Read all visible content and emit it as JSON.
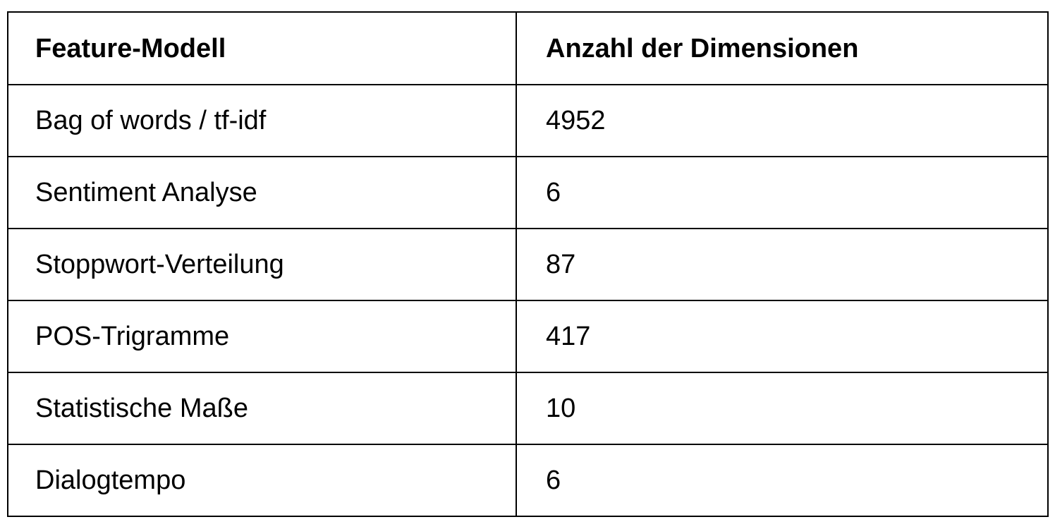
{
  "table": {
    "headers": [
      "Feature-Modell",
      "Anzahl der Dimensionen"
    ],
    "rows": [
      {
        "model": "Bag of words / tf-idf",
        "dimensions": "4952"
      },
      {
        "model": "Sentiment Analyse",
        "dimensions": "6"
      },
      {
        "model": "Stoppwort-Verteilung",
        "dimensions": "87"
      },
      {
        "model": "POS-Trigramme",
        "dimensions": "417"
      },
      {
        "model": "Statistische Maße",
        "dimensions": "10"
      },
      {
        "model": "Dialogtempo",
        "dimensions": "6"
      }
    ]
  }
}
